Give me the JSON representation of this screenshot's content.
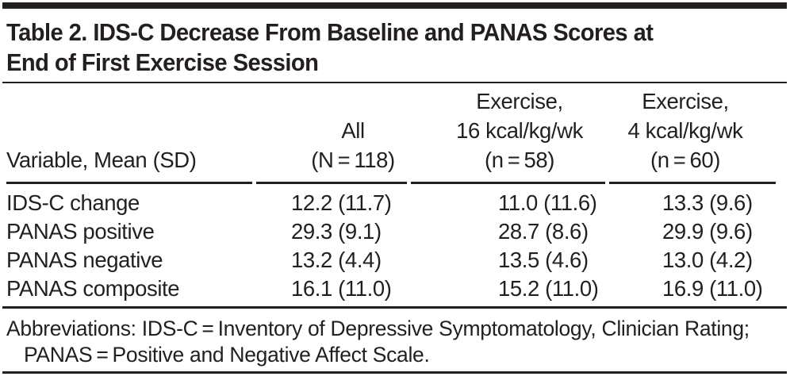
{
  "title_lines": {
    "line1": "Table 2. IDS-C Decrease From Baseline and PANAS Scores at",
    "line2": "End of First Exercise Session"
  },
  "header": {
    "variable": "Variable, Mean (SD)",
    "all": {
      "line1": "All",
      "line2": "(N = 118)"
    },
    "exercise16": {
      "line1": "Exercise,",
      "line2": "16 kcal/kg/wk",
      "line3": "(n = 58)"
    },
    "exercise4": {
      "line1": "Exercise,",
      "line2": "4 kcal/kg/wk",
      "line3": "(n = 60)"
    }
  },
  "rows": [
    {
      "label": "IDS-C change",
      "all": "12.2 (11.7)",
      "exercise16": "11.0 (11.6)",
      "exercise4": "13.3 (9.6)"
    },
    {
      "label": "PANAS positive",
      "all": "29.3 (9.1)",
      "exercise16": "28.7 (8.6)",
      "exercise4": "29.9 (9.6)"
    },
    {
      "label": "PANAS negative",
      "all": "13.2 (4.4)",
      "exercise16": "13.5 (4.6)",
      "exercise4": "13.0 (4.2)"
    },
    {
      "label": "PANAS composite",
      "all": "16.1 (11.0)",
      "exercise16": "15.2 (11.0)",
      "exercise4": "16.9 (11.0)"
    }
  ],
  "footnote": "Abbreviations: IDS-C = Inventory of Depressive Symptomatology, Clinician Rating; PANAS = Positive and Negative Affect Scale.",
  "colors": {
    "text": "#231f20",
    "rule": "#231f20",
    "background": "#ffffff"
  }
}
